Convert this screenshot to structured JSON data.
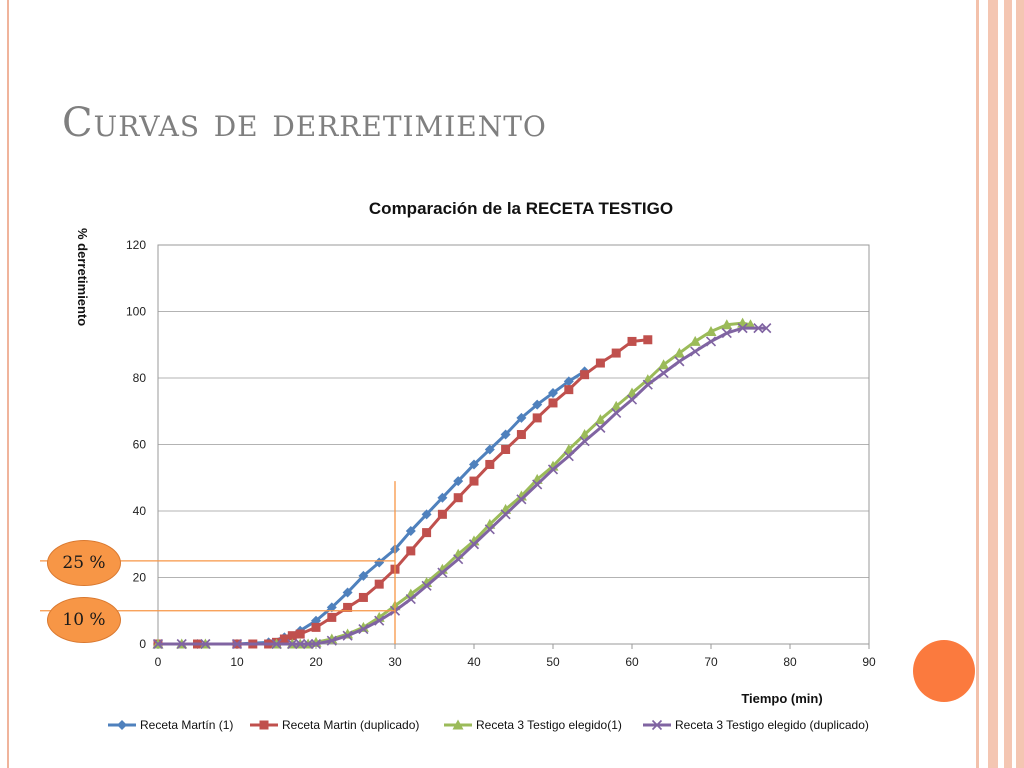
{
  "slide": {
    "title": "Curvas de derretimiento",
    "badges": [
      "25 %",
      "10 %"
    ]
  },
  "colors": {
    "title": "#7f7f7f",
    "accent_stripe": "#f4c6b2",
    "badge": "#f79646",
    "decor_circle": "#fb7a3e",
    "guide_lines": "#f79646"
  },
  "chart_data": {
    "type": "line",
    "title": "Comparación de  la RECETA TESTIGO",
    "xlabel": "Tiempo (min)",
    "ylabel": "% derretimiento",
    "xlim": [
      0,
      90
    ],
    "ylim": [
      0,
      120
    ],
    "xticks": [
      0,
      10,
      20,
      30,
      40,
      50,
      60,
      70,
      80,
      90
    ],
    "yticks": [
      0,
      20,
      40,
      60,
      80,
      100,
      120
    ],
    "grid": "horizontal",
    "legend_position": "bottom",
    "guides": [
      {
        "y": 25,
        "x_to": 30
      },
      {
        "y": 10,
        "x_to": 30
      },
      {
        "x": 30,
        "y_to": 49
      }
    ],
    "series": [
      {
        "name": "Receta Martín (1)",
        "color": "#4f81bd",
        "marker": "diamond",
        "x": [
          0,
          5,
          10,
          14,
          16,
          18,
          20,
          22,
          24,
          26,
          28,
          30,
          32,
          34,
          36,
          38,
          40,
          42,
          44,
          46,
          48,
          50,
          52,
          54
        ],
        "y": [
          0,
          0,
          0,
          0.5,
          2,
          4,
          7,
          11,
          15.5,
          20.5,
          24.5,
          28.5,
          34,
          39,
          44,
          49,
          54,
          58.5,
          63,
          68,
          72,
          75.5,
          79,
          82
        ]
      },
      {
        "name": "Receta Martin (duplicado)",
        "color": "#c0504d",
        "marker": "square",
        "x": [
          0,
          5,
          10,
          12,
          14,
          15,
          16,
          17,
          18,
          20,
          22,
          24,
          26,
          28,
          30,
          32,
          34,
          36,
          38,
          40,
          42,
          44,
          46,
          48,
          50,
          52,
          54,
          56,
          58,
          60,
          62
        ],
        "y": [
          0,
          0,
          0,
          0,
          0,
          0.5,
          1.5,
          2.5,
          3,
          5,
          8,
          11,
          14,
          18,
          22.5,
          28,
          33.5,
          39,
          44,
          49,
          54,
          58.5,
          63,
          68,
          72.5,
          76.5,
          81,
          84.5,
          87.5,
          91,
          91.5
        ]
      },
      {
        "name": "Receta 3 Testigo elegido(1)",
        "color": "#9bbb59",
        "marker": "triangle",
        "x": [
          0,
          3,
          6,
          15,
          17,
          18,
          19,
          20,
          22,
          24,
          26,
          28,
          30,
          32,
          34,
          36,
          38,
          40,
          42,
          44,
          46,
          48,
          50,
          52,
          54,
          56,
          58,
          60,
          62,
          64,
          66,
          68,
          70,
          72,
          74,
          75
        ],
        "y": [
          0,
          0,
          0,
          0,
          0,
          0,
          0,
          0.5,
          1.5,
          3,
          5,
          8,
          11.5,
          15,
          18.5,
          22.5,
          27,
          31,
          36,
          40.5,
          44.5,
          49.5,
          53.5,
          58.5,
          63,
          67.5,
          71.5,
          75.5,
          79.5,
          84,
          87.5,
          91,
          94,
          96,
          96.5,
          96
        ]
      },
      {
        "name": "Receta 3 Testigo elegido (duplicado)",
        "color": "#8064a2",
        "marker": "x",
        "x": [
          0,
          3,
          6,
          10,
          15,
          17,
          18,
          19,
          20,
          22,
          24,
          26,
          28,
          30,
          32,
          34,
          36,
          38,
          40,
          42,
          44,
          46,
          48,
          50,
          52,
          54,
          56,
          58,
          60,
          62,
          64,
          66,
          68,
          70,
          72,
          74,
          76,
          77
        ],
        "y": [
          0,
          0,
          0,
          0,
          0,
          0,
          0,
          0,
          0,
          1,
          2.5,
          4.5,
          7,
          10,
          13.5,
          17.5,
          21.5,
          25.5,
          30,
          34.5,
          39,
          43.5,
          48,
          52.5,
          56.5,
          61,
          65,
          69.5,
          73.5,
          78,
          81.5,
          85,
          88,
          91,
          93.5,
          95,
          95,
          95
        ]
      }
    ]
  }
}
